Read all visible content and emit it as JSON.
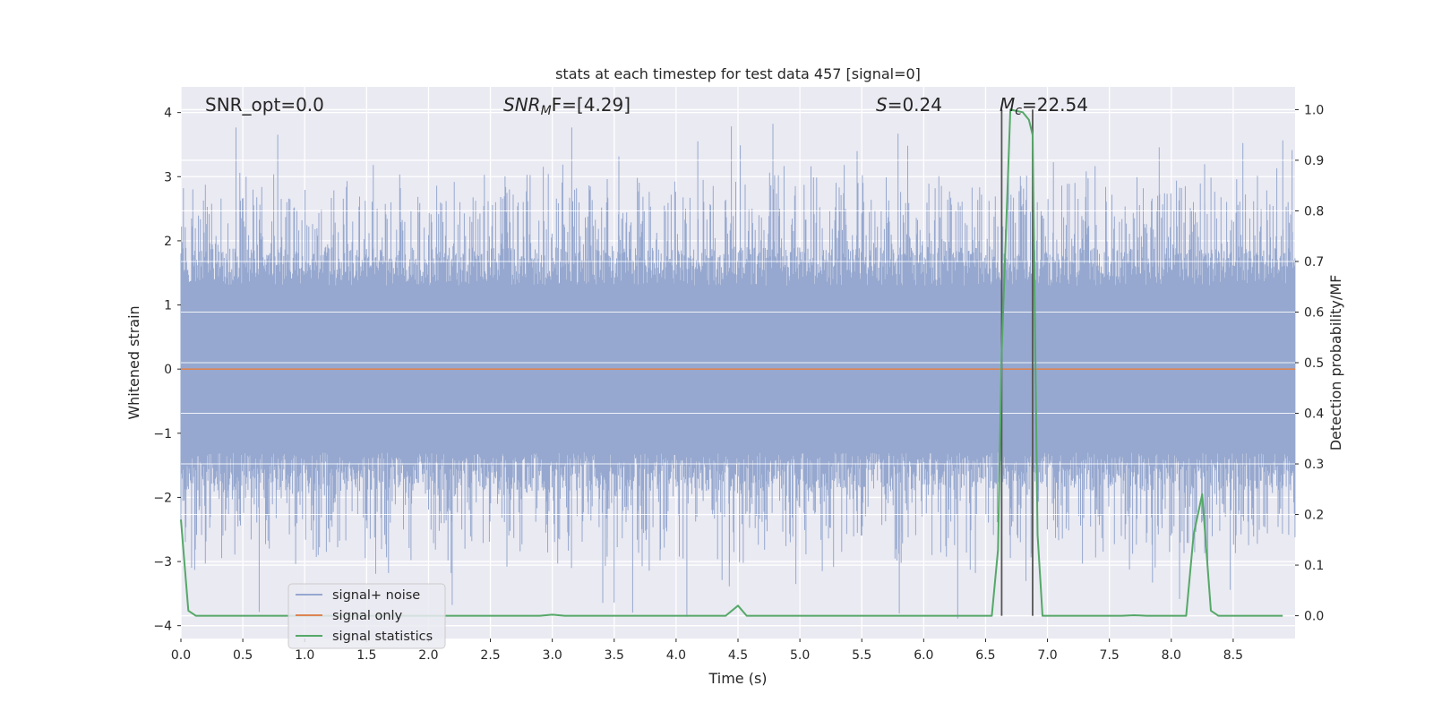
{
  "chart_data": {
    "type": "line",
    "title": "stats at each timestep for test data 457 [signal=0]",
    "xlabel": "Time (s)",
    "ylabel_left": "Whitened strain",
    "ylabel_right": "Detection probability/MF",
    "xlim": [
      0.0,
      9.0
    ],
    "ylim_left": [
      -4.2,
      4.4
    ],
    "ylim_right": [
      -0.045,
      1.045
    ],
    "x_ticks": [
      "0.0",
      "0.5",
      "1.0",
      "1.5",
      "2.0",
      "2.5",
      "3.0",
      "3.5",
      "4.0",
      "4.5",
      "5.0",
      "5.5",
      "6.0",
      "6.5",
      "7.0",
      "7.5",
      "8.0",
      "8.5"
    ],
    "y_ticks_left": [
      "4",
      "3",
      "2",
      "1",
      "0",
      "−1",
      "−2",
      "−3",
      "−4"
    ],
    "y_ticks_right": [
      "1.0",
      "0.9",
      "0.8",
      "0.7",
      "0.6",
      "0.5",
      "0.4",
      "0.3",
      "0.2",
      "0.1",
      "0.0"
    ],
    "grid": true,
    "legend_position": "bottom-left",
    "annotations": {
      "snr_opt": "SNR_opt=0.0",
      "snr_mf_base": "SNR",
      "snr_mf_sub": "M",
      "snr_mf_rest": "F=[4.29]",
      "s_var": "S",
      "s_rest": "=0.24",
      "mc_var": "M",
      "mc_sub": "c",
      "mc_rest": "=22.54"
    },
    "vertical_markers": [
      6.63,
      6.88
    ],
    "series": [
      {
        "name": "signal+ noise",
        "color": "#96a8cf",
        "description_values": "whitened strain noise, approx. range -3.8 to 4.0, dense"
      },
      {
        "name": "signal only",
        "color": "#dd8452",
        "x": [
          0.0,
          9.0
        ],
        "y": [
          0.0,
          0.0
        ]
      },
      {
        "name": "signal statistics",
        "color": "#55a868",
        "x": [
          0.0,
          0.06,
          0.12,
          0.2,
          2.9,
          3.0,
          3.1,
          4.4,
          4.5,
          4.57,
          6.55,
          6.6,
          6.63,
          6.7,
          6.8,
          6.85,
          6.88,
          6.92,
          6.96,
          7.6,
          7.7,
          7.8,
          8.12,
          8.18,
          8.25,
          8.32,
          8.38,
          8.9
        ],
        "y": [
          0.19,
          0.01,
          0.0,
          0.0,
          0.0,
          0.002,
          0.0,
          0.0,
          0.02,
          0.0,
          0.0,
          0.13,
          0.52,
          1.0,
          0.995,
          0.98,
          0.95,
          0.16,
          0.0,
          0.0,
          0.001,
          0.0,
          0.0,
          0.16,
          0.24,
          0.01,
          0.0,
          0.0
        ]
      }
    ]
  }
}
